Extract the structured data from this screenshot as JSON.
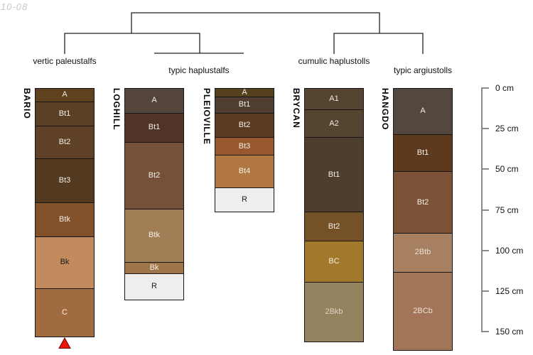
{
  "watermark": "10-08",
  "chart_data": {
    "type": "soil-profile-columns-with-dendrogram",
    "depth_axis": {
      "unit": "cm",
      "tick_values": [
        0,
        25,
        50,
        75,
        100,
        125,
        150
      ],
      "tick_labels": [
        "0 cm",
        "25 cm",
        "50 cm",
        "75 cm",
        "100 cm",
        "125 cm",
        "150 cm"
      ],
      "max_cm": 150
    },
    "dendrogram_groups": [
      {
        "label": "vertic paleustalfs",
        "members": [
          "BARIO"
        ]
      },
      {
        "label": "typic haplustalfs",
        "members": [
          "LOGHILL",
          "PLEIOVILLE"
        ]
      },
      {
        "label": "cumulic haplustolls",
        "members": [
          "BRYCAN"
        ]
      },
      {
        "label": "typic argiustolls",
        "members": [
          "HANGDO"
        ]
      }
    ],
    "profiles": [
      {
        "name": "BARIO",
        "group": "vertic paleustalfs",
        "continues_below": true,
        "marker_color": "#ED1409",
        "horizons": [
          {
            "name": "A",
            "top_cm": 0,
            "bottom_cm": 8,
            "color": "#5F401F",
            "text": "#F2EEE6"
          },
          {
            "name": "Bt1",
            "top_cm": 8,
            "bottom_cm": 23,
            "color": "#5C4026",
            "text": "#F2EEE6"
          },
          {
            "name": "Bt2",
            "top_cm": 23,
            "bottom_cm": 43,
            "color": "#5F4226",
            "text": "#F2EEE6"
          },
          {
            "name": "Bt3",
            "top_cm": 43,
            "bottom_cm": 70,
            "color": "#523920",
            "text": "#F2EEE6"
          },
          {
            "name": "Btk",
            "top_cm": 70,
            "bottom_cm": 91,
            "color": "#82512A",
            "text": "#F2EEE6"
          },
          {
            "name": "Bk",
            "top_cm": 91,
            "bottom_cm": 123,
            "color": "#C18B5D",
            "text": "#1A1A1A"
          },
          {
            "name": "C",
            "top_cm": 123,
            "bottom_cm": 153,
            "color": "#A16B40",
            "text": "#F2EEE6"
          }
        ]
      },
      {
        "name": "LOGHILL",
        "group": "typic haplustalfs",
        "continues_below": false,
        "horizons": [
          {
            "name": "A",
            "top_cm": 0,
            "bottom_cm": 15,
            "color": "#54453C",
            "text": "#F2EEE6"
          },
          {
            "name": "Bt1",
            "top_cm": 15,
            "bottom_cm": 33,
            "color": "#503425",
            "text": "#F2EEE6"
          },
          {
            "name": "Bt2",
            "top_cm": 33,
            "bottom_cm": 74,
            "color": "#755139",
            "text": "#F2EEE6"
          },
          {
            "name": "Btk",
            "top_cm": 74,
            "bottom_cm": 107,
            "color": "#A27E56",
            "text": "#F2EEE6"
          },
          {
            "name": "Bk",
            "top_cm": 107,
            "bottom_cm": 114,
            "color": "#9E7549",
            "text": "#F2EEE6"
          },
          {
            "name": "R",
            "top_cm": 114,
            "bottom_cm": 130,
            "color": "#F0EEEC",
            "text": "#1A1A1A"
          }
        ]
      },
      {
        "name": "PLEIOVILLE",
        "group": "typic haplustalfs",
        "continues_below": false,
        "horizons": [
          {
            "name": "A",
            "top_cm": 0,
            "bottom_cm": 5,
            "color": "#56411F",
            "text": "#F2EEE6"
          },
          {
            "name": "Bt1",
            "top_cm": 5,
            "bottom_cm": 15,
            "color": "#4F3E31",
            "text": "#F2EEE6"
          },
          {
            "name": "Bt2",
            "top_cm": 15,
            "bottom_cm": 30,
            "color": "#5D3A22",
            "text": "#F2EEE6"
          },
          {
            "name": "Bt3",
            "top_cm": 30,
            "bottom_cm": 41,
            "color": "#96582C",
            "text": "#F2EEE6"
          },
          {
            "name": "Bt4",
            "top_cm": 41,
            "bottom_cm": 61,
            "color": "#B27842",
            "text": "#F2EEE6"
          },
          {
            "name": "R",
            "top_cm": 61,
            "bottom_cm": 76,
            "color": "#F0EEEC",
            "text": "#1A1A1A"
          }
        ]
      },
      {
        "name": "BRYCAN",
        "group": "cumulic haplustolls",
        "continues_below": false,
        "horizons": [
          {
            "name": "A1",
            "top_cm": 0,
            "bottom_cm": 13,
            "color": "#55442F",
            "text": "#F2EEE6"
          },
          {
            "name": "A2",
            "top_cm": 13,
            "bottom_cm": 30,
            "color": "#55442F",
            "text": "#F2EEE6"
          },
          {
            "name": "Bt1",
            "top_cm": 30,
            "bottom_cm": 76,
            "color": "#4E3E2D",
            "text": "#F2EEE6"
          },
          {
            "name": "Bt2",
            "top_cm": 76,
            "bottom_cm": 94,
            "color": "#745127",
            "text": "#F2EEE6"
          },
          {
            "name": "BC",
            "top_cm": 94,
            "bottom_cm": 119,
            "color": "#A2792B",
            "text": "#F2EEE6"
          },
          {
            "name": "2Bkb",
            "top_cm": 119,
            "bottom_cm": 156,
            "color": "#95825F",
            "text": "#DCD3BF"
          }
        ]
      },
      {
        "name": "HANGDO",
        "group": "typic argiustolls",
        "continues_below": false,
        "horizons": [
          {
            "name": "A",
            "top_cm": 0,
            "bottom_cm": 28,
            "color": "#54473F",
            "text": "#F2EEE6"
          },
          {
            "name": "Bt1",
            "top_cm": 28,
            "bottom_cm": 51,
            "color": "#5D3A1E",
            "text": "#F2EEE6"
          },
          {
            "name": "Bt2",
            "top_cm": 51,
            "bottom_cm": 89,
            "color": "#7C5237",
            "text": "#F2EEE6"
          },
          {
            "name": "2Btb",
            "top_cm": 89,
            "bottom_cm": 113,
            "color": "#A68061",
            "text": "#E9E0D3"
          },
          {
            "name": "2BCb",
            "top_cm": 113,
            "bottom_cm": 161,
            "color": "#A37558",
            "text": "#E9E0D3"
          }
        ]
      }
    ]
  }
}
